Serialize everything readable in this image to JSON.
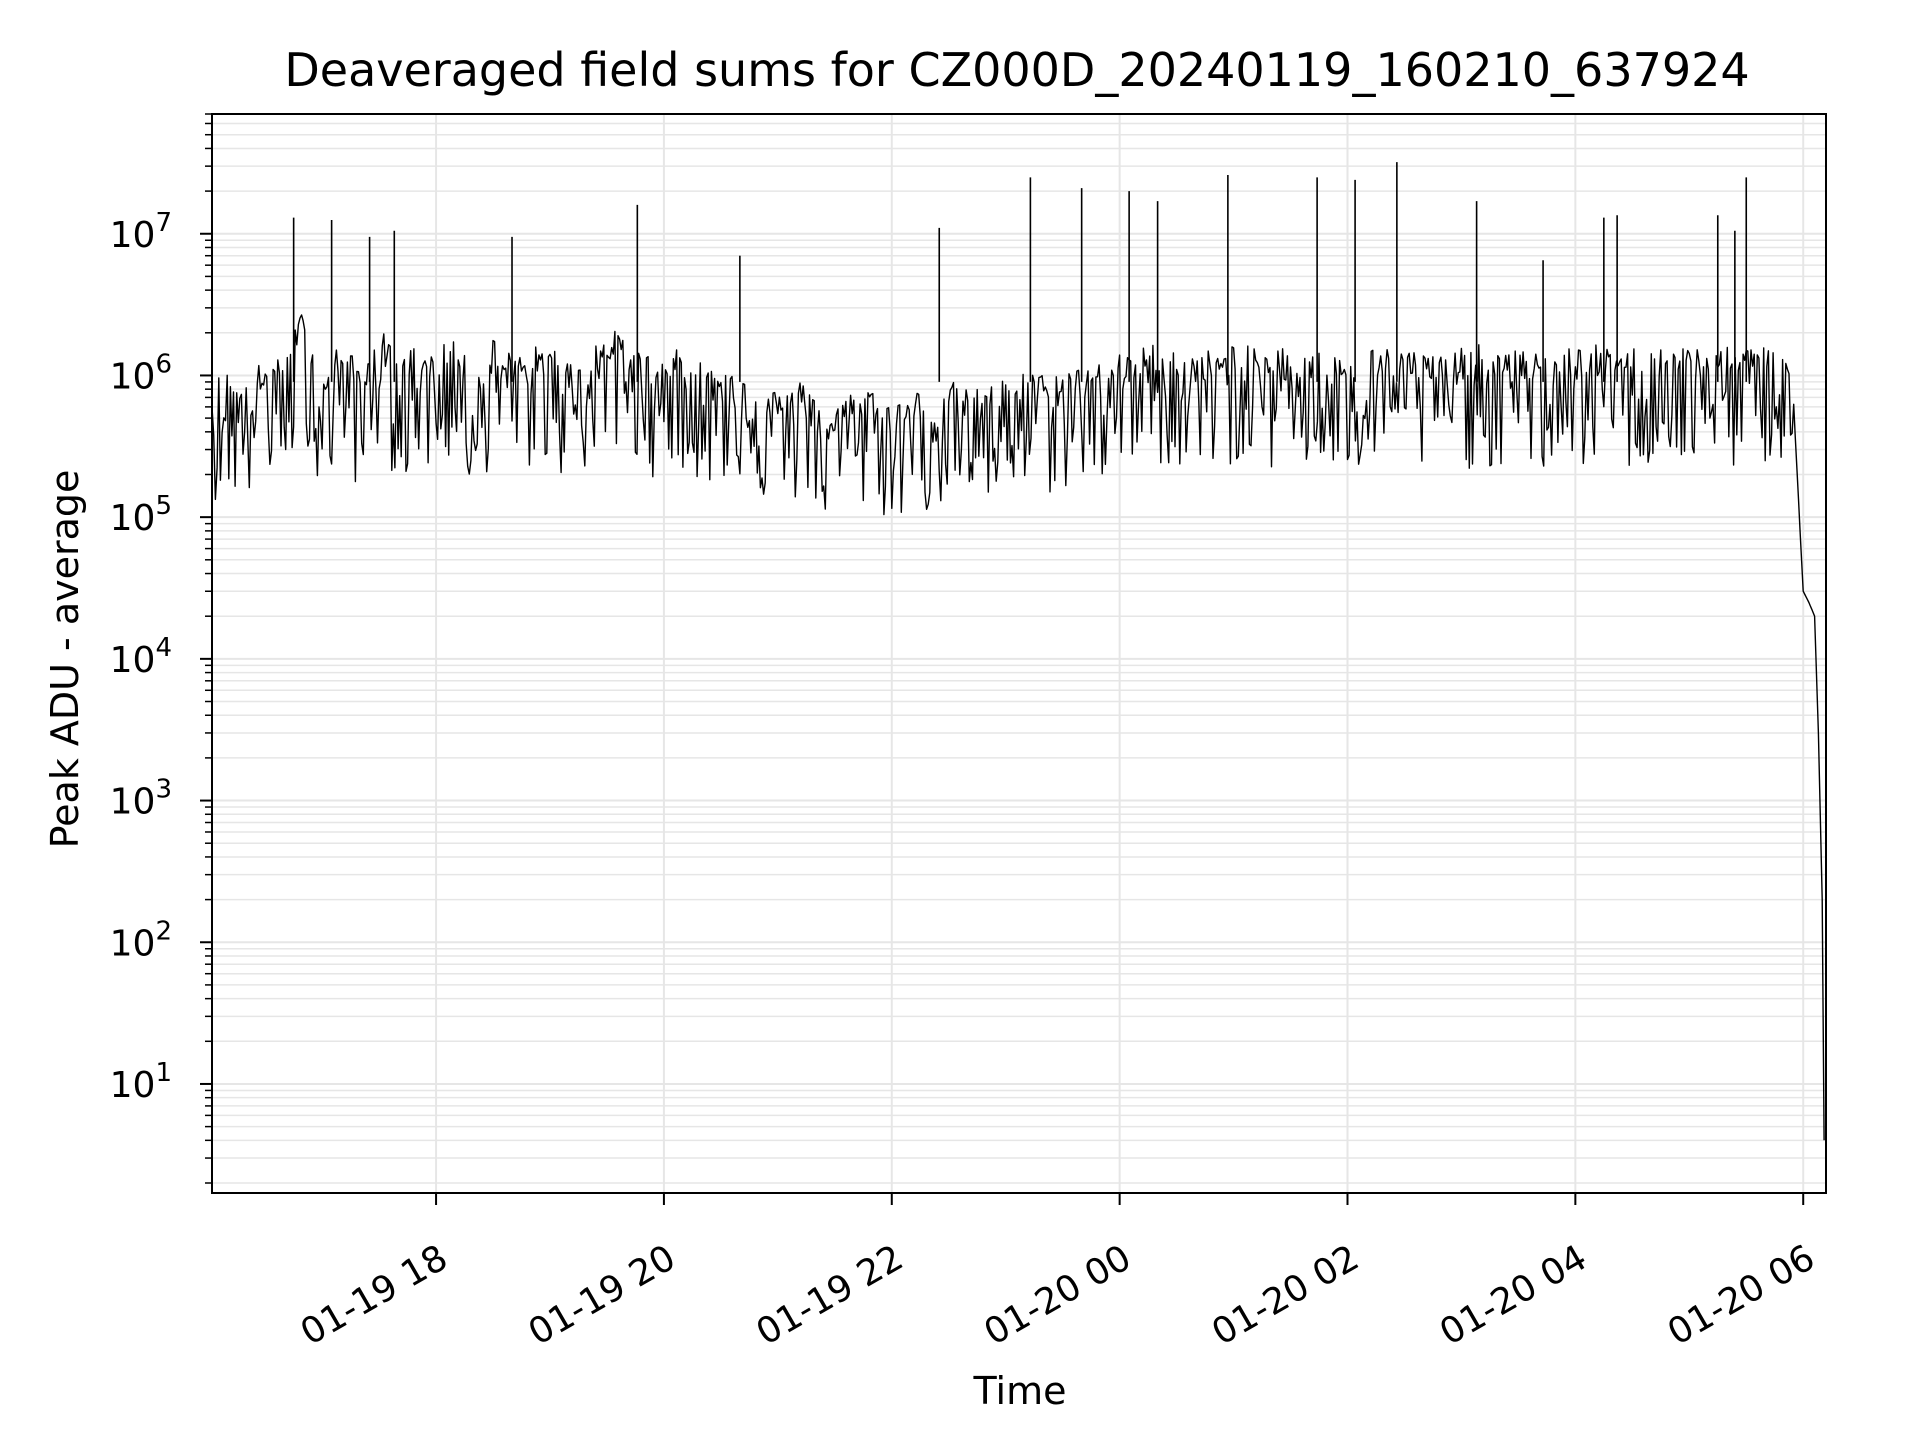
{
  "chart_data": {
    "type": "line",
    "title": "Deaveraged field sums for CZ000D_20240119_160210_637924",
    "xlabel": "Time",
    "ylabel": "Peak ADU - average",
    "yscale": "log",
    "ylim": [
      1.7,
      70000000
    ],
    "xlim": [
      "2024-01-19 16:02",
      "2024-01-20 06:12"
    ],
    "grid": true,
    "line_color": "#000000",
    "grid_color": "#e6e6e6",
    "x_ticks": [
      {
        "value": "2024-01-19 18:00",
        "label": "01-19 18"
      },
      {
        "value": "2024-01-19 20:00",
        "label": "01-19 20"
      },
      {
        "value": "2024-01-19 22:00",
        "label": "01-19 22"
      },
      {
        "value": "2024-01-20 00:00",
        "label": "01-20 00"
      },
      {
        "value": "2024-01-20 02:00",
        "label": "01-20 02"
      },
      {
        "value": "2024-01-20 04:00",
        "label": "01-20 04"
      },
      {
        "value": "2024-01-20 06:00",
        "label": "01-20 06"
      }
    ],
    "y_ticks": [
      {
        "value": 10,
        "base": "10",
        "exp": "1"
      },
      {
        "value": 100,
        "base": "10",
        "exp": "2"
      },
      {
        "value": 1000,
        "base": "10",
        "exp": "3"
      },
      {
        "value": 10000,
        "base": "10",
        "exp": "4"
      },
      {
        "value": 100000,
        "base": "10",
        "exp": "5"
      },
      {
        "value": 1000000,
        "base": "10",
        "exp": "6"
      },
      {
        "value": 10000000,
        "base": "10",
        "exp": "7"
      }
    ],
    "series": [
      {
        "x": [
          "2024-01-19 16:02",
          "2024-01-19 16:10",
          "2024-01-19 16:20",
          "2024-01-19 16:30",
          "2024-01-19 16:40",
          "2024-01-19 16:50",
          "2024-01-19 17:00",
          "2024-01-19 17:10",
          "2024-01-19 17:20",
          "2024-01-19 17:30",
          "2024-01-19 17:40",
          "2024-01-19 17:50",
          "2024-01-19 18:00",
          "2024-01-19 18:10",
          "2024-01-19 18:20",
          "2024-01-19 18:30",
          "2024-01-19 18:40",
          "2024-01-19 18:50",
          "2024-01-19 19:00",
          "2024-01-19 19:10",
          "2024-01-19 19:20",
          "2024-01-19 19:30",
          "2024-01-19 19:40",
          "2024-01-19 19:50",
          "2024-01-19 20:00",
          "2024-01-19 20:10",
          "2024-01-19 20:20",
          "2024-01-19 20:30",
          "2024-01-19 20:40",
          "2024-01-19 20:50",
          "2024-01-19 21:00",
          "2024-01-19 21:10",
          "2024-01-19 21:20",
          "2024-01-19 21:30",
          "2024-01-19 21:40",
          "2024-01-19 21:50",
          "2024-01-19 22:00",
          "2024-01-19 22:10",
          "2024-01-19 22:20",
          "2024-01-19 22:30",
          "2024-01-19 22:40",
          "2024-01-19 22:50",
          "2024-01-19 23:00",
          "2024-01-19 23:10",
          "2024-01-19 23:20",
          "2024-01-19 23:30",
          "2024-01-19 23:40",
          "2024-01-19 23:50",
          "2024-01-20 00:00",
          "2024-01-20 00:10",
          "2024-01-20 00:20",
          "2024-01-20 00:30",
          "2024-01-20 00:40",
          "2024-01-20 00:50",
          "2024-01-20 01:00",
          "2024-01-20 01:10",
          "2024-01-20 01:20",
          "2024-01-20 01:30",
          "2024-01-20 01:40",
          "2024-01-20 01:50",
          "2024-01-20 02:00",
          "2024-01-20 02:10",
          "2024-01-20 02:20",
          "2024-01-20 02:30",
          "2024-01-20 02:40",
          "2024-01-20 02:50",
          "2024-01-20 03:00",
          "2024-01-20 03:10",
          "2024-01-20 03:20",
          "2024-01-20 03:30",
          "2024-01-20 03:40",
          "2024-01-20 03:50",
          "2024-01-20 04:00",
          "2024-01-20 04:10",
          "2024-01-20 04:20",
          "2024-01-20 04:30",
          "2024-01-20 04:40",
          "2024-01-20 04:50",
          "2024-01-20 05:00",
          "2024-01-20 05:10",
          "2024-01-20 05:20",
          "2024-01-20 05:30",
          "2024-01-20 05:40",
          "2024-01-20 05:50",
          "2024-01-20 05:55",
          "2024-01-20 06:00",
          "2024-01-20 06:03",
          "2024-01-20 06:06",
          "2024-01-20 06:08",
          "2024-01-20 06:10",
          "2024-01-20 06:11"
        ],
        "y": [
          600000,
          700000,
          550000,
          900000,
          800000,
          2000000,
          600000,
          1200000,
          700000,
          1500000,
          800000,
          1100000,
          900000,
          1300000,
          600000,
          1200000,
          900000,
          1000000,
          1100000,
          800000,
          1000000,
          1400000,
          1200000,
          900000,
          900000,
          1000000,
          800000,
          700000,
          900000,
          600000,
          500000,
          600000,
          500000,
          400000,
          500000,
          550000,
          400000,
          500000,
          500000,
          600000,
          500000,
          550000,
          600000,
          700000,
          650000,
          700000,
          800000,
          800000,
          900000,
          1000000,
          1100000,
          1000000,
          900000,
          1000000,
          1100000,
          1000000,
          1000000,
          1050000,
          1000000,
          900000,
          900000,
          1000000,
          1000000,
          1000000,
          950000,
          900000,
          1000000,
          1050000,
          1000000,
          950000,
          950000,
          1000000,
          1000000,
          1050000,
          1000000,
          1000000,
          1050000,
          1100000,
          1000000,
          1050000,
          1000000,
          1000000,
          1100000,
          1000000,
          600000,
          30000,
          25000,
          20000,
          3000,
          200,
          4
        ],
        "spikes": [
          {
            "x": "2024-01-19 16:45",
            "y": 13000000
          },
          {
            "x": "2024-01-19 17:05",
            "y": 12500000
          },
          {
            "x": "2024-01-19 17:25",
            "y": 9500000
          },
          {
            "x": "2024-01-19 17:38",
            "y": 10500000
          },
          {
            "x": "2024-01-19 18:40",
            "y": 9500000
          },
          {
            "x": "2024-01-19 19:46",
            "y": 16000000
          },
          {
            "x": "2024-01-19 20:40",
            "y": 7000000
          },
          {
            "x": "2024-01-19 22:25",
            "y": 11000000
          },
          {
            "x": "2024-01-19 23:13",
            "y": 25000000
          },
          {
            "x": "2024-01-19 23:40",
            "y": 21000000
          },
          {
            "x": "2024-01-20 00:05",
            "y": 20000000
          },
          {
            "x": "2024-01-20 00:20",
            "y": 17000000
          },
          {
            "x": "2024-01-20 00:57",
            "y": 26000000
          },
          {
            "x": "2024-01-20 01:44",
            "y": 25000000
          },
          {
            "x": "2024-01-20 02:04",
            "y": 24000000
          },
          {
            "x": "2024-01-20 02:26",
            "y": 32000000
          },
          {
            "x": "2024-01-20 03:08",
            "y": 17000000
          },
          {
            "x": "2024-01-20 03:43",
            "y": 6500000
          },
          {
            "x": "2024-01-20 04:15",
            "y": 13000000
          },
          {
            "x": "2024-01-20 04:22",
            "y": 13500000
          },
          {
            "x": "2024-01-20 05:15",
            "y": 13500000
          },
          {
            "x": "2024-01-20 05:24",
            "y": 10500000
          },
          {
            "x": "2024-01-20 05:30",
            "y": 25000000
          }
        ]
      }
    ]
  }
}
